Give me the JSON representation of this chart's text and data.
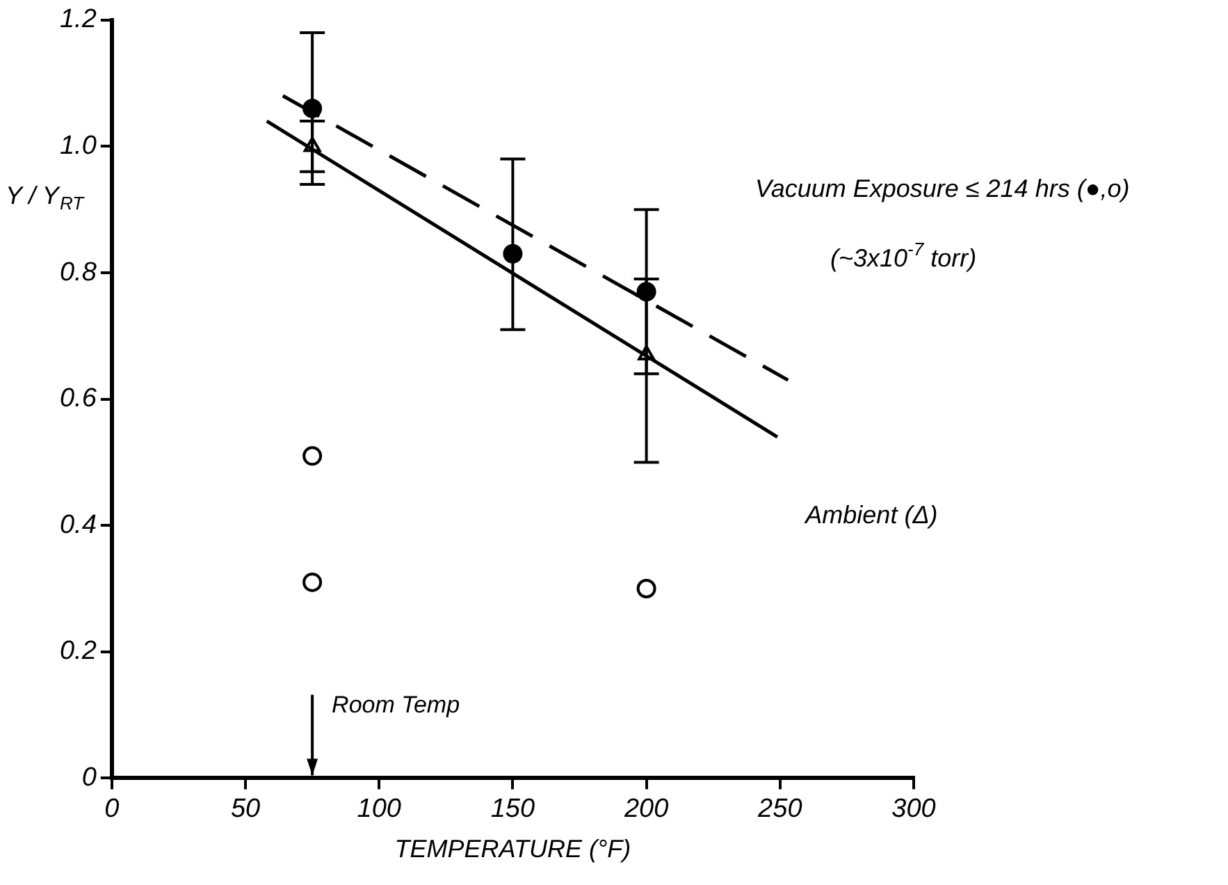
{
  "chart_data": {
    "type": "scatter",
    "xlabel": "TEMPERATURE (°F)",
    "ylabel": "Y / Y$_{RT}$",
    "xlim": [
      0,
      300
    ],
    "xticks": [
      0,
      50,
      100,
      150,
      200,
      250,
      300
    ],
    "ylim": [
      0,
      1.2
    ],
    "yticks": [
      0,
      0.2,
      0.4,
      0.6,
      0.8,
      {
        "value": 1.0,
        "label": "1.0"
      },
      1.2
    ],
    "grid": false,
    "legend": false,
    "annotations": [
      "Vacuum Exposure ≤ 214 hrs (●,o)",
      "(~3x10$^{-7}$ torr)",
      "Ambient (Δ)",
      "Room Temp"
    ],
    "series": [
      {
        "type": "line",
        "color": "#000000",
        "line_style": "dashed",
        "marker": "none",
        "x": [
          64,
          253
        ],
        "values": [
          1.08,
          0.63
        ]
      },
      {
        "type": "line",
        "color": "#000000",
        "line_style": "solid",
        "marker": "none",
        "x": [
          58,
          249
        ],
        "values": [
          1.04,
          0.54
        ]
      },
      {
        "color": "#000000",
        "marker": "circle",
        "x": [
          75,
          150,
          200
        ],
        "values": [
          1.06,
          0.83,
          0.77
        ],
        "errors": [
          [
            0.96,
            1.18
          ],
          [
            0.71,
            0.98
          ],
          [
            0.5,
            0.9
          ]
        ]
      },
      {
        "color": "#ffffff",
        "marker": "triangle",
        "x": [
          75,
          200
        ],
        "values": [
          1.0,
          0.67
        ],
        "errors": [
          [
            0.94,
            1.04
          ],
          [
            0.64,
            0.79
          ]
        ]
      },
      {
        "color": "#ffffff",
        "marker": "circle",
        "x": [
          75,
          75,
          200
        ],
        "values": [
          0.51,
          0.31,
          0.3
        ]
      }
    ]
  }
}
